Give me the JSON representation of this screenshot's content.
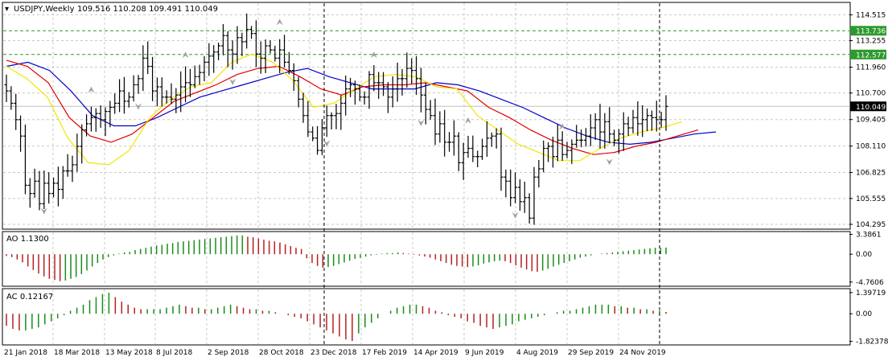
{
  "chart_data": {
    "type": "ohlc",
    "symbol_header": "USDJPY,Weekly",
    "ohlc_header": "109.516 110.208 109.491 110.049",
    "last_price": "110.049",
    "h_levels": [
      {
        "label": "113.736",
        "value": 113.736,
        "color": "#2e9a2e"
      },
      {
        "label": "112.577",
        "value": 112.577,
        "color": "#2e9a2e"
      }
    ],
    "y_ticks": [
      "114.515",
      "113.255",
      "111.960",
      "110.700",
      "109.405",
      "108.110",
      "106.825",
      "105.555",
      "104.295"
    ],
    "ylim": [
      104.1,
      115.0
    ],
    "x_labels": [
      "21 Jan 2018",
      "18 Mar 2018",
      "13 May 2018",
      "8 Jul 2018",
      "2 Sep 2018",
      "28 Oct 2018",
      "23 Dec 2018",
      "17 Feb 2019",
      "14 Apr 2019",
      "9 Jun 2019",
      "4 Aug 2019",
      "29 Sep 2019",
      "24 Nov 2019"
    ],
    "closes": [
      110.8,
      110.2,
      109.4,
      108.6,
      106.2,
      105.8,
      106.4,
      105.3,
      106.3,
      105.8,
      106.3,
      106.0,
      106.9,
      106.9,
      107.2,
      108.1,
      108.9,
      109.2,
      109.5,
      109.7,
      109.4,
      109.8,
      110.0,
      110.2,
      110.8,
      110.3,
      110.5,
      111.1,
      111.4,
      112.4,
      112.0,
      110.8,
      111.0,
      110.5,
      110.5,
      110.4,
      110.6,
      111.0,
      111.2,
      111.1,
      111.5,
      111.7,
      112.2,
      112.5,
      112.7,
      113.0,
      113.5,
      112.8,
      112.6,
      113.4,
      113.2,
      113.8,
      113.6,
      112.6,
      112.4,
      113.0,
      112.8,
      112.4,
      112.8,
      112.2,
      111.8,
      111.3,
      110.4,
      109.6,
      108.8,
      108.5,
      107.9,
      109.0,
      109.6,
      109.6,
      109.7,
      110.2,
      110.9,
      111.1,
      110.9,
      110.5,
      110.5,
      111.6,
      111.2,
      111.2,
      111.0,
      110.5,
      110.9,
      111.4,
      111.4,
      111.9,
      111.8,
      111.4,
      110.6,
      109.9,
      109.6,
      108.7,
      109.2,
      108.3,
      108.3,
      108.6,
      107.3,
      107.8,
      108.0,
      107.6,
      107.6,
      108.1,
      108.5,
      108.6,
      108.7,
      106.6,
      106.4,
      105.6,
      106.1,
      105.4,
      105.6,
      104.6,
      106.6,
      107.0,
      108.0,
      108.1,
      107.6,
      108.4,
      107.7,
      107.9,
      108.2,
      108.4,
      108.4,
      108.6,
      109.0,
      109.4,
      108.8,
      109.3,
      108.7,
      108.4,
      108.7,
      109.2,
      109.0,
      109.5,
      109.2,
      109.4,
      109.6,
      109.5,
      109.4,
      109.4,
      110.049
    ],
    "ma_fast_yellow": [
      112.0,
      111.4,
      110.5,
      108.5,
      107.3,
      107.2,
      107.9,
      109.5,
      110.4,
      111.0,
      111.2,
      112.2,
      112.6,
      112.2,
      111.3,
      110.0,
      110.2,
      110.9,
      111.5,
      111.6,
      111.5,
      111.0,
      110.9,
      109.6,
      108.9,
      108.2,
      107.8,
      107.4,
      107.4,
      108.0,
      108.5,
      108.8,
      109.0,
      109.3
    ],
    "ma_mid_red": [
      112.3,
      112.0,
      111.2,
      109.5,
      108.6,
      108.3,
      108.7,
      109.5,
      110.3,
      110.7,
      111.1,
      111.6,
      111.9,
      112.0,
      111.5,
      110.9,
      110.6,
      111.0,
      111.1,
      111.1,
      111.2,
      111.0,
      110.8,
      110.0,
      109.5,
      108.9,
      108.4,
      108.0,
      107.7,
      107.8,
      108.1,
      108.3,
      108.6,
      108.9
    ],
    "ma_slow_blue": [
      112.0,
      112.2,
      111.8,
      110.8,
      109.6,
      109.1,
      109.1,
      109.5,
      110.0,
      110.5,
      110.8,
      111.1,
      111.4,
      111.7,
      111.9,
      111.5,
      111.2,
      110.9,
      110.9,
      110.9,
      111.2,
      111.1,
      110.8,
      110.4,
      110.0,
      109.5,
      109.0,
      108.6,
      108.3,
      108.2,
      108.3,
      108.5,
      108.7,
      108.8
    ],
    "ao": {
      "label": "AO 1.1300",
      "y_ticks": [
        "3.3861",
        "0.00",
        "-4.7606"
      ],
      "ylim": [
        -5.2,
        3.6
      ],
      "values": [
        -0.3,
        -0.5,
        -0.9,
        -1.4,
        -2.1,
        -2.7,
        -3.3,
        -3.8,
        -4.2,
        -4.4,
        -4.6,
        -4.5,
        -4.2,
        -3.9,
        -3.4,
        -2.8,
        -2.1,
        -1.5,
        -0.9,
        -0.5,
        -0.2,
        0.1,
        0.3,
        0.4,
        0.7,
        0.9,
        1.1,
        1.3,
        1.5,
        1.6,
        1.8,
        1.9,
        2.1,
        2.2,
        2.3,
        2.4,
        2.5,
        2.6,
        2.7,
        2.8,
        2.9,
        3.0,
        3.1,
        3.2,
        3.2,
        3.0,
        2.9,
        2.7,
        2.5,
        2.3,
        2.2,
        2.0,
        1.7,
        1.4,
        1.1,
        0.9,
        -0.7,
        -1.5,
        -2.0,
        -2.3,
        -2.2,
        -2.0,
        -1.7,
        -1.4,
        -1.1,
        -0.8,
        -0.6,
        -0.4,
        -0.2,
        -0.1,
        0.1,
        0.2,
        0.2,
        0.3,
        0.2,
        0.1,
        -0.1,
        -0.2,
        -0.4,
        -0.6,
        -0.9,
        -1.2,
        -1.5,
        -1.8,
        -2.0,
        -2.1,
        -2.2,
        -2.1,
        -1.9,
        -1.6,
        -1.4,
        -1.2,
        -1.1,
        -1.2,
        -1.5,
        -1.9,
        -2.3,
        -2.6,
        -2.9,
        -3.0,
        -2.8,
        -2.5,
        -2.1,
        -1.8,
        -1.5,
        -1.2,
        -0.9,
        -0.6,
        -0.4,
        -0.2,
        0.0,
        0.1,
        0.2,
        0.3,
        0.4,
        0.5,
        0.6,
        0.7,
        0.8,
        0.9,
        1.0,
        1.1,
        1.1,
        1.13
      ]
    },
    "ac": {
      "label": "AC 0.12167",
      "y_ticks": [
        "1.39719",
        "0.00",
        "-1.82378"
      ],
      "ylim": [
        -1.9,
        1.5
      ],
      "values": [
        -0.8,
        -1.0,
        -1.1,
        -1.1,
        -1.0,
        -0.9,
        -0.7,
        -0.5,
        -0.3,
        -0.1,
        0.2,
        0.4,
        0.6,
        0.9,
        1.1,
        1.3,
        1.39,
        1.1,
        0.8,
        0.6,
        0.4,
        0.3,
        0.3,
        0.3,
        0.3,
        0.4,
        0.5,
        0.6,
        0.5,
        0.4,
        0.4,
        0.3,
        0.3,
        0.4,
        0.5,
        0.6,
        0.5,
        0.4,
        0.3,
        0.3,
        0.2,
        0.2,
        0.1,
        0.0,
        -0.1,
        -0.2,
        -0.3,
        -0.5,
        -0.7,
        -0.9,
        -1.1,
        -1.3,
        -1.5,
        -1.7,
        -1.8,
        -1.3,
        -0.9,
        -0.6,
        -0.3,
        0.0,
        0.2,
        0.4,
        0.5,
        0.6,
        0.6,
        0.5,
        0.4,
        0.2,
        0.1,
        -0.1,
        -0.2,
        -0.3,
        -0.5,
        -0.6,
        -0.8,
        -0.9,
        -1.0,
        -0.9,
        -0.8,
        -0.7,
        -0.5,
        -0.4,
        -0.3,
        -0.2,
        -0.1,
        0.0,
        0.1,
        0.2,
        0.2,
        0.3,
        0.4,
        0.5,
        0.6,
        0.6,
        0.6,
        0.5,
        0.5,
        0.4,
        0.4,
        0.3,
        0.3,
        0.2,
        0.2,
        0.12
      ]
    },
    "grid": true,
    "colors": {
      "bar": "#000000",
      "ma_fast": "#f2e600",
      "ma_mid": "#e00000",
      "ma_slow": "#0000c8",
      "osc_up": "#1a8c1a",
      "osc_down": "#b22222",
      "grid": "#c8c8c8",
      "hline": "#2e9a2e",
      "fractal": "#a0a0a0"
    }
  }
}
